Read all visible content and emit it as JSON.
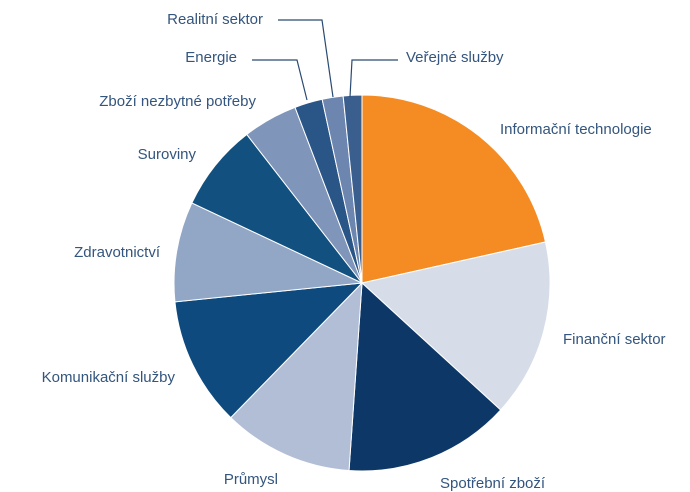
{
  "chart_data": {
    "type": "pie",
    "categories": [
      "Informační technologie",
      "Finanční sektor",
      "Spotřební zboží",
      "Průmysl",
      "Komunikační služby",
      "Zdravotnictví",
      "Suroviny",
      "Zboží nezbytné potřeby",
      "Energie",
      "Realitní sektor",
      "Veřejné služby"
    ],
    "values": [
      21.5,
      15.3,
      14.3,
      11.2,
      11.1,
      8.6,
      7.5,
      4.7,
      2.4,
      1.8,
      1.6
    ],
    "colors": [
      "#f58c23",
      "#d6dde9",
      "#0d3766",
      "#b1bed5",
      "#0e4a7d",
      "#92a6c5",
      "#11507f",
      "#7f95ba",
      "#2a5587",
      "#6d86b0",
      "#3a5f8e"
    ]
  }
}
